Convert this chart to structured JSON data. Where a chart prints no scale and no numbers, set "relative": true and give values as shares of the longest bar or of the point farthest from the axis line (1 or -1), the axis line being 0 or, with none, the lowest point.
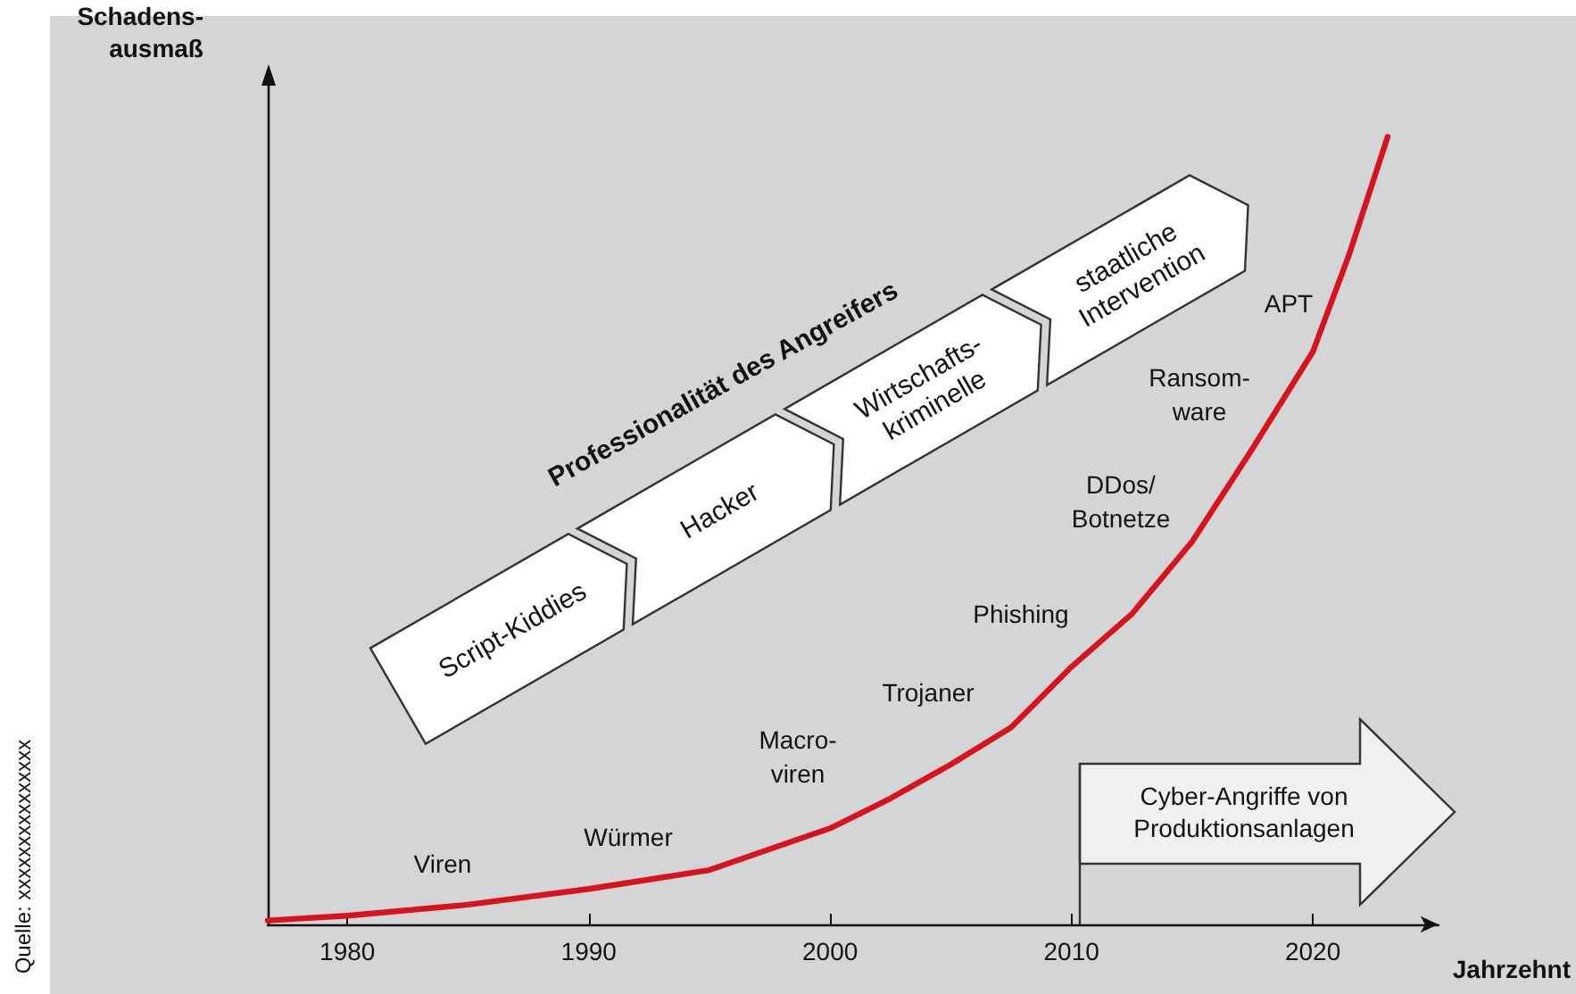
{
  "chart_data": {
    "type": "line",
    "relative": true,
    "xlabel": "Jahrzehnt",
    "ylabel": "Schadens-\nausmaß",
    "xlim": [
      1976.7,
      2025.2
    ],
    "xticks": [
      1980,
      1990,
      2000,
      2010,
      2020
    ],
    "series": [
      {
        "color": "#d7141e",
        "x": [
          1976.7,
          1980,
          1985,
          1990,
          1995,
          2000,
          2002.5,
          2005,
          2007.5,
          2010,
          2012.5,
          2015,
          2017.5,
          2020,
          2021.5,
          2023.1
        ],
        "values": [
          0.005,
          0.011,
          0.025,
          0.045,
          0.069,
          0.122,
          0.16,
          0.203,
          0.25,
          0.327,
          0.394,
          0.486,
          0.604,
          0.727,
          0.85,
          1
        ]
      }
    ],
    "marker": "none",
    "grid": false,
    "annotations": [
      "Viren",
      "Würmer",
      "Macro-\nviren",
      "Trojaner",
      "Phishing",
      "DDos/\nBotnetze",
      "Ransom-\nware",
      "APT",
      "Script-Kiddies",
      "Hacker",
      "Wirtschafts-\nkriminelle",
      "staatliche\nIntervention",
      "Professionalität des Angreifers",
      "Cyber-Angriffe von\nProduktionsanlagen",
      "Quelle: xxxxxxxxxxxxxxx"
    ]
  }
}
